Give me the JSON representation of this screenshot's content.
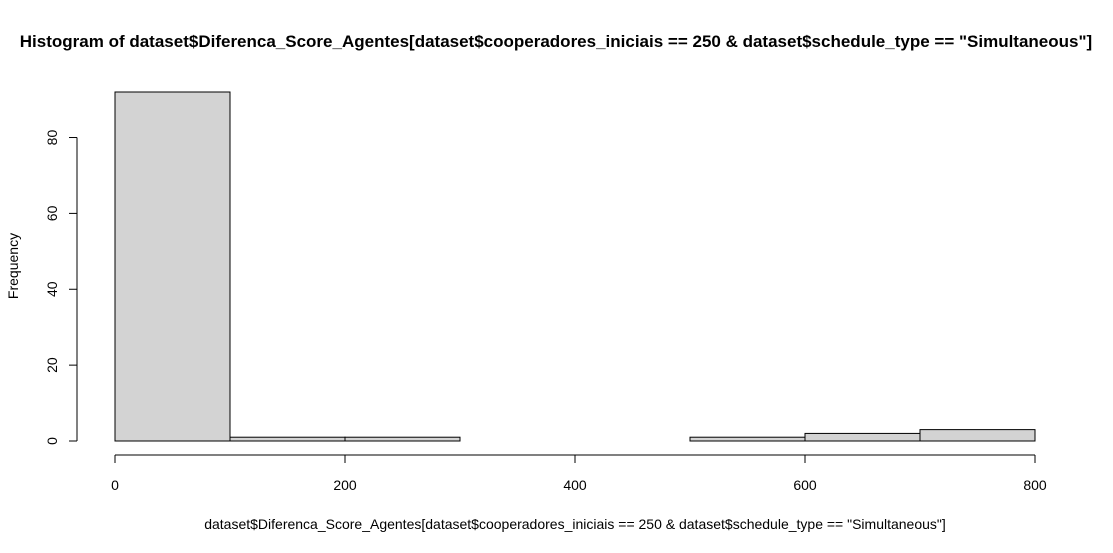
{
  "chart_data": {
    "type": "bar",
    "title": "Histogram of dataset$Diferenca_Score_Agentes[dataset$cooperadores_iniciais == 250 & dataset$schedule_type == \"Simultaneous\"]",
    "xlabel": "dataset$Diferenca_Score_Agentes[dataset$cooperadores_iniciais == 250 & dataset$schedule_type == \"Simultaneous\"]",
    "ylabel": "Frequency",
    "bins": [
      {
        "from": 0,
        "to": 100,
        "count": 92
      },
      {
        "from": 100,
        "to": 200,
        "count": 1
      },
      {
        "from": 200,
        "to": 300,
        "count": 1
      },
      {
        "from": 300,
        "to": 400,
        "count": 0
      },
      {
        "from": 400,
        "to": 500,
        "count": 0
      },
      {
        "from": 500,
        "to": 600,
        "count": 1
      },
      {
        "from": 600,
        "to": 700,
        "count": 2
      },
      {
        "from": 700,
        "to": 800,
        "count": 3
      }
    ],
    "x_ticks": [
      0,
      200,
      400,
      600,
      800
    ],
    "y_ticks": [
      0,
      20,
      40,
      60,
      80
    ],
    "xlim": [
      0,
      800
    ],
    "ylim": [
      0,
      92
    ],
    "bar_color": "#d3d3d3",
    "border_color": "#000000",
    "grid": false,
    "legend": "none"
  }
}
